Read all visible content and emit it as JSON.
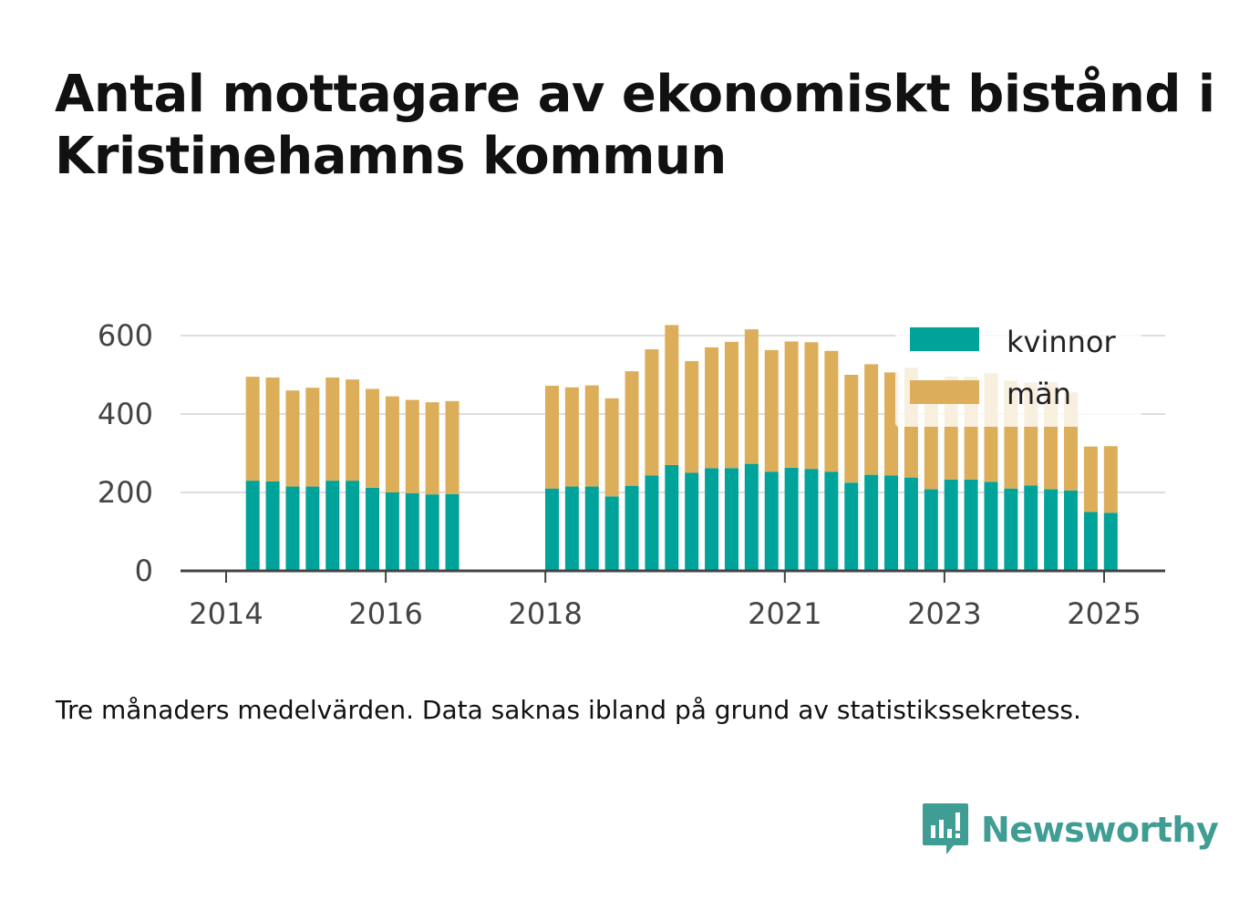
{
  "title": "Antal mottagare av ekonomiskt bistånd i Kristinehamns kommun",
  "footnote": "Tre månaders medelvärden. Data saknas ibland på grund av statistikssekretess.",
  "brand": {
    "name": "Newsworthy"
  },
  "colors": {
    "kvinnor": "#00a399",
    "man": "#dcae5a",
    "grid": "#dddddd",
    "axis": "#444444",
    "brand": "#3f9d93"
  },
  "chart_data": {
    "type": "bar",
    "stacked": true,
    "x_label": "",
    "y_label": "",
    "ylim": [
      0,
      600
    ],
    "y_ticks": [
      0,
      200,
      400,
      600
    ],
    "x_ticks": [
      "2014",
      "2016",
      "2018",
      "2021",
      "2023",
      "2025"
    ],
    "grid": true,
    "legend_position": "top-right",
    "categories": [
      "2014-05",
      "2014-08",
      "2014-11",
      "2015-02",
      "2015-05",
      "2015-08",
      "2015-11",
      "2016-02",
      "2016-05",
      "2016-08",
      "2016-11",
      "2018-02",
      "2018-05",
      "2018-08",
      "2018-11",
      "2019-02",
      "2019-05",
      "2019-08",
      "2019-11",
      "2020-02",
      "2020-05",
      "2020-08",
      "2020-11",
      "2021-02",
      "2021-05",
      "2021-08",
      "2021-11",
      "2022-02",
      "2022-05",
      "2022-08",
      "2022-11",
      "2023-02",
      "2023-05",
      "2023-08",
      "2023-11",
      "2024-02",
      "2024-05",
      "2024-08",
      "2024-11",
      "2025-02"
    ],
    "series": [
      {
        "name": "kvinnor",
        "values": [
          230,
          228,
          215,
          215,
          230,
          230,
          212,
          200,
          198,
          195,
          196,
          210,
          215,
          215,
          190,
          217,
          243,
          270,
          250,
          262,
          262,
          273,
          253,
          263,
          260,
          253,
          225,
          245,
          243,
          238,
          208,
          233,
          233,
          227,
          210,
          218,
          208,
          205,
          150,
          148
        ]
      },
      {
        "name": "män",
        "values": [
          265,
          265,
          245,
          252,
          263,
          258,
          252,
          245,
          238,
          235,
          237,
          262,
          253,
          258,
          250,
          292,
          322,
          357,
          285,
          308,
          322,
          343,
          310,
          322,
          323,
          308,
          275,
          282,
          263,
          280,
          240,
          263,
          262,
          277,
          275,
          262,
          273,
          250,
          167,
          170
        ]
      }
    ]
  }
}
